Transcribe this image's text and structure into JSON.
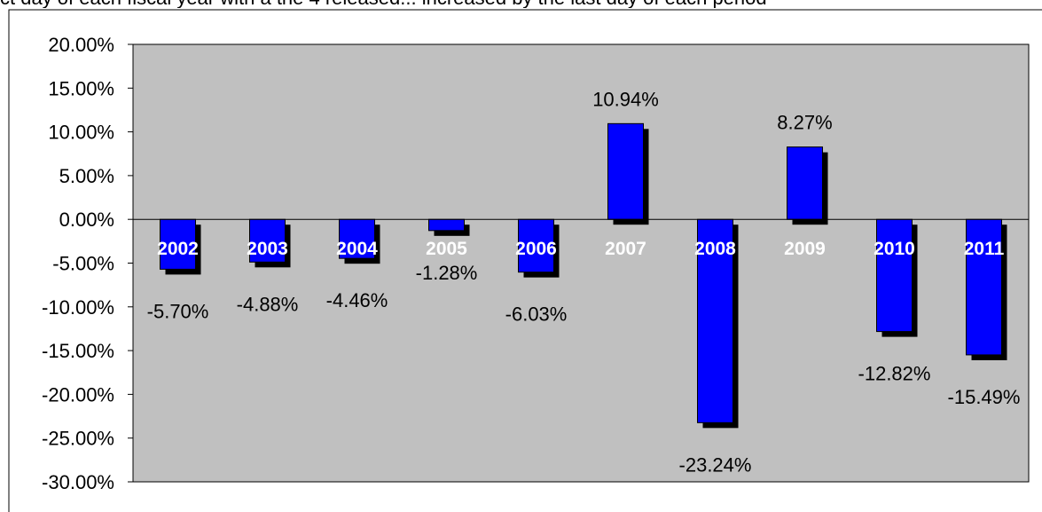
{
  "caption": "ct day of each fiscal year with a the 4 released... increased by the last day of each period",
  "chart_data": {
    "type": "bar",
    "title": "",
    "xlabel": "",
    "ylabel": "",
    "categories": [
      "2002",
      "2003",
      "2004",
      "2005",
      "2006",
      "2007",
      "2008",
      "2009",
      "2010",
      "2011"
    ],
    "values": [
      -5.7,
      -4.88,
      -4.46,
      -1.28,
      -6.03,
      10.94,
      -23.24,
      8.27,
      -12.82,
      -15.49
    ],
    "data_labels": [
      "-5.70%",
      "-4.88%",
      "-4.46%",
      "-1.28%",
      "-6.03%",
      "10.94%",
      "-23.24%",
      "8.27%",
      "-12.82%",
      "-15.49%"
    ],
    "ylim": [
      -30,
      20
    ],
    "y_ticks": [
      20,
      15,
      10,
      5,
      0,
      -5,
      -10,
      -15,
      -20,
      -25,
      -30
    ],
    "y_tick_labels": [
      "20.00%",
      "15.00%",
      "10.00%",
      "5.00%",
      "0.00%",
      "-5.00%",
      "-10.00%",
      "-15.00%",
      "-20.00%",
      "-25.00%",
      "-30.00%"
    ],
    "grid": false,
    "legend": "none",
    "colors": {
      "bar": "#0000ff",
      "bar_shadow": "#000000",
      "plot_background": "#c0c0c0",
      "page_background": "#ffffff"
    }
  }
}
